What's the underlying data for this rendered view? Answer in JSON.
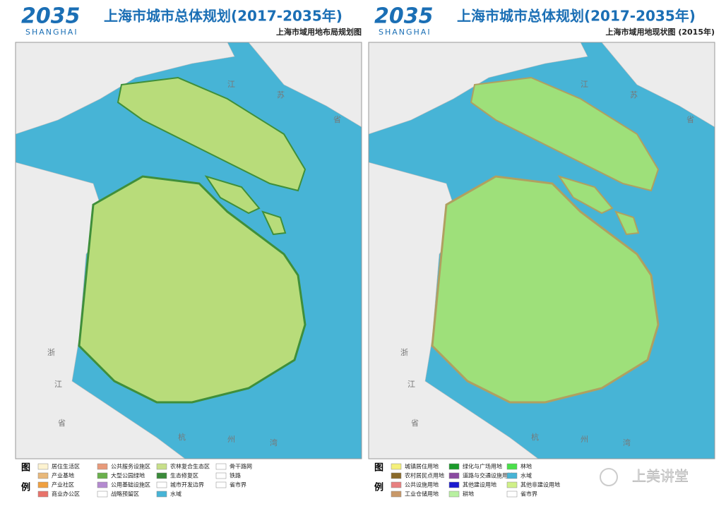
{
  "panels": [
    {
      "logo_number": "2035",
      "logo_text": "SHANGHAI",
      "title": "上海市城市总体规划(2017-2035年)",
      "subtitle": "上海市域用地布局规划图",
      "legend": {
        "heading": [
          "图",
          "例"
        ],
        "items": [
          {
            "label": "居住生活区",
            "color": "#fdf3d0"
          },
          {
            "label": "产业基地",
            "color": "#e8b87a"
          },
          {
            "label": "产业社区",
            "color": "#f0a040"
          },
          {
            "label": "商业办公区",
            "color": "#e8736a"
          },
          {
            "label": "公共服务设施区",
            "color": "#e89a7a"
          },
          {
            "label": "大型公园绿地",
            "color": "#6ab04c"
          },
          {
            "label": "公用基础设施区",
            "color": "#b48ad0"
          },
          {
            "label": "战略预留区",
            "color": "#ffffff"
          },
          {
            "label": "农林复合生态区",
            "color": "#c8e08a"
          },
          {
            "label": "生态修复区",
            "color": "#3a8a3a"
          },
          {
            "label": "城市开发边界",
            "color": "#ffffff"
          },
          {
            "label": "水域",
            "color": "#47b4d6"
          },
          {
            "label": "骨干路网",
            "color": "#ffffff"
          },
          {
            "label": "铁路",
            "color": "#ffffff"
          },
          {
            "label": "省市界",
            "color": "#ffffff"
          }
        ]
      },
      "map_labels": [
        "江",
        "苏",
        "省",
        "浙",
        "江",
        "省",
        "杭",
        "州",
        "湾"
      ]
    },
    {
      "logo_number": "2035",
      "logo_text": "SHANGHAI",
      "title": "上海市城市总体规划(2017-2035年)",
      "subtitle": "上海市域用地现状图 (2015年)",
      "legend": {
        "heading": [
          "图",
          "例"
        ],
        "items": [
          {
            "label": "城镇居住用地",
            "color": "#f5f07a"
          },
          {
            "label": "农村居民点用地",
            "color": "#8a6a2a"
          },
          {
            "label": "公共设施用地",
            "color": "#e88080"
          },
          {
            "label": "工业仓储用地",
            "color": "#c89868"
          },
          {
            "label": "绿化与广场用地",
            "color": "#1a9a2a"
          },
          {
            "label": "道路与交通设施用地",
            "color": "#8a4aa0"
          },
          {
            "label": "其他建设用地",
            "color": "#1a1ad0"
          },
          {
            "label": "耕地",
            "color": "#b8f0a0"
          },
          {
            "label": "林地",
            "color": "#4ae04a"
          },
          {
            "label": "水域",
            "color": "#47b4d6"
          },
          {
            "label": "其他非建设用地",
            "color": "#d0f088"
          },
          {
            "label": "省市界",
            "color": "#ffffff"
          }
        ]
      },
      "map_labels": [
        "江",
        "苏",
        "省",
        "浙",
        "江",
        "省",
        "杭",
        "州",
        "湾"
      ]
    }
  ],
  "watermark": "上美讲堂"
}
